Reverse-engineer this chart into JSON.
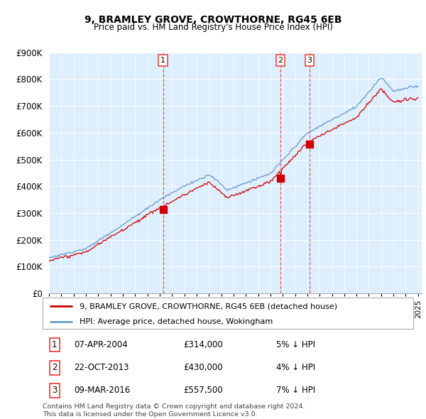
{
  "title": "9, BRAMLEY GROVE, CROWTHORNE, RG45 6EB",
  "subtitle": "Price paid vs. HM Land Registry's House Price Index (HPI)",
  "legend_line1": "9, BRAMLEY GROVE, CROWTHORNE, RG45 6EB (detached house)",
  "legend_line2": "HPI: Average price, detached house, Wokingham",
  "footer1": "Contains HM Land Registry data © Crown copyright and database right 2024.",
  "footer2": "This data is licensed under the Open Government Licence v3.0.",
  "transactions": [
    {
      "num": 1,
      "date": "07-APR-2004",
      "price": "£314,000",
      "hpi": "5% ↓ HPI",
      "year": 2004.27
    },
    {
      "num": 2,
      "date": "22-OCT-2013",
      "price": "£430,000",
      "hpi": "4% ↓ HPI",
      "year": 2013.81
    },
    {
      "num": 3,
      "date": "09-MAR-2016",
      "price": "£557,500",
      "hpi": "7% ↓ HPI",
      "year": 2016.19
    }
  ],
  "sale_prices": [
    314000,
    430000,
    557500
  ],
  "sale_years": [
    2004.27,
    2013.81,
    2016.19
  ],
  "y_ticks": [
    0,
    100000,
    200000,
    300000,
    400000,
    500000,
    600000,
    700000,
    800000,
    900000
  ],
  "y_tick_labels": [
    "£0",
    "£100K",
    "£200K",
    "£300K",
    "£400K",
    "£500K",
    "£600K",
    "£700K",
    "£800K",
    "£900K"
  ],
  "hpi_color": "#6699cc",
  "sale_color": "#cc0000",
  "dashed_color": "#ee4444",
  "background_chart": "#ddeeff",
  "background_fig": "#ffffff"
}
